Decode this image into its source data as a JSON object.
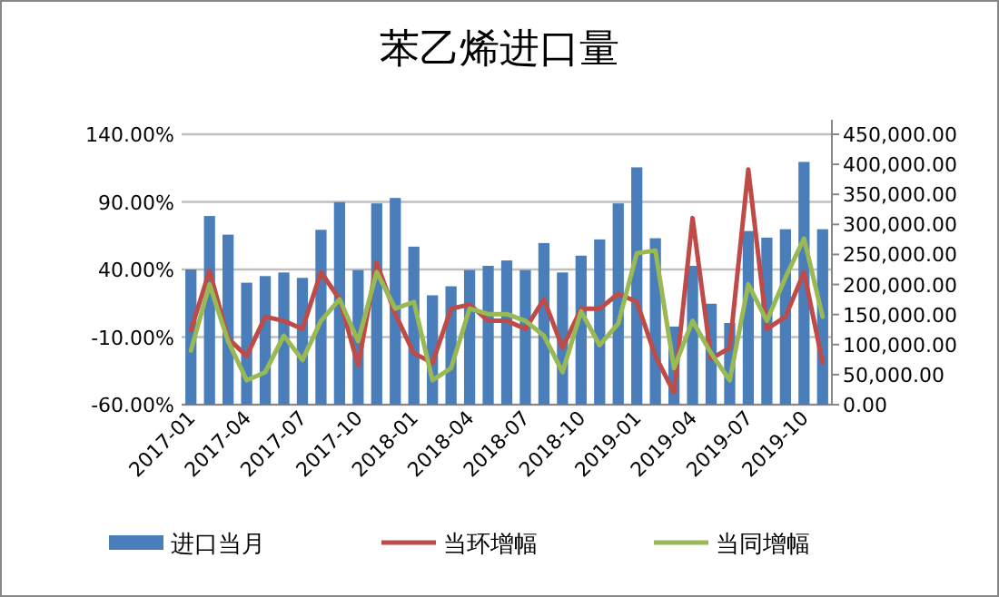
{
  "chart_data": {
    "type": "bar",
    "title": "苯乙烯进口量",
    "categories": [
      "2017-01",
      null,
      null,
      "2017-04",
      null,
      null,
      "2017-07",
      null,
      null,
      "2017-10",
      null,
      null,
      "2018-01",
      null,
      null,
      "2018-04",
      null,
      null,
      "2018-07",
      null,
      null,
      "2018-10",
      null,
      null,
      "2019-01",
      null,
      null,
      "2019-04",
      null,
      null,
      "2019-07",
      null,
      null,
      "2019-10",
      null
    ],
    "series": [
      {
        "name": "进口当月",
        "axis": "y2",
        "color": "#4a7ebb",
        "values": [
          225000,
          314000,
          283000,
          203000,
          214000,
          220000,
          211000,
          291000,
          337000,
          224000,
          335000,
          344000,
          263000,
          182000,
          197000,
          224000,
          231000,
          240000,
          224000,
          269000,
          220000,
          248000,
          275000,
          335000,
          395000,
          277000,
          130000,
          231000,
          168000,
          136000,
          289000,
          278000,
          292000,
          404000,
          292000
        ]
      },
      {
        "name": "当环增幅",
        "type": "line",
        "color": "#be4b48",
        "values": [
          -5,
          39,
          -11,
          -24,
          5,
          2,
          -4,
          38,
          18,
          -31,
          45,
          7,
          -22,
          -29,
          11,
          14,
          2,
          2,
          -4,
          18,
          -18,
          11,
          11,
          22,
          16,
          -24,
          -51,
          78,
          -26,
          -18,
          114,
          -4,
          5,
          38,
          -29
        ]
      },
      {
        "name": "当同增幅",
        "type": "line",
        "color": "#98b954",
        "values": [
          -20,
          29,
          -13,
          -42,
          -36,
          -9,
          -27,
          2,
          18,
          -13,
          38,
          11,
          16,
          -42,
          -33,
          11,
          7,
          7,
          2,
          -9,
          -36,
          9,
          -16,
          0,
          52,
          54,
          -33,
          2,
          -22,
          -42,
          29,
          2,
          34,
          63,
          5
        ]
      }
    ],
    "ylim": [
      -60,
      140
    ],
    "yticks": [
      {
        "value": 140,
        "label": "140.00%"
      },
      {
        "value": 90,
        "label": "90.00%"
      },
      {
        "value": 40,
        "label": "40.00%"
      },
      {
        "value": -10,
        "label": "-10.00%"
      },
      {
        "value": -60,
        "label": "-60.00%"
      }
    ],
    "y2lim": [
      0,
      450000
    ],
    "y2ticks": [
      {
        "value": 450000,
        "label": "450,000.00"
      },
      {
        "value": 400000,
        "label": "400,000.00"
      },
      {
        "value": 350000,
        "label": "350,000.00"
      },
      {
        "value": 300000,
        "label": "300,000.00"
      },
      {
        "value": 250000,
        "label": "250,000.00"
      },
      {
        "value": 200000,
        "label": "200,000.00"
      },
      {
        "value": 150000,
        "label": "150,000.00"
      },
      {
        "value": 100000,
        "label": "100,000.00"
      },
      {
        "value": 50000,
        "label": "50,000.00"
      },
      {
        "value": 0,
        "label": "0.00"
      }
    ],
    "grid": "y",
    "legend": "bottom",
    "marker": "none",
    "line_style": "solid"
  }
}
